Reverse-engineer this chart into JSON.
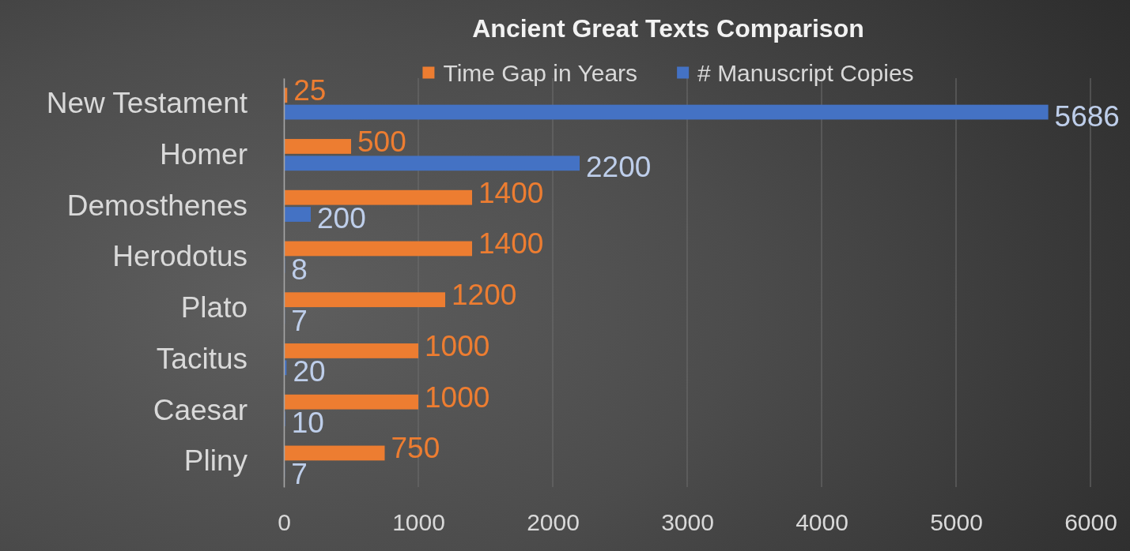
{
  "chart_data": {
    "type": "bar",
    "orientation": "horizontal",
    "title": "Ancient Great Texts Comparison",
    "categories": [
      "New Testament",
      "Homer",
      "Demosthenes",
      "Herodotus",
      "Plato",
      "Tacitus",
      "Caesar",
      "Pliny"
    ],
    "series": [
      {
        "name": "Time Gap in Years",
        "color": "#ed7d31",
        "values": [
          25,
          500,
          1400,
          1400,
          1200,
          1000,
          1000,
          750
        ]
      },
      {
        "name": "# Manuscript Copies",
        "color": "#4472c4",
        "values": [
          5686,
          2200,
          200,
          8,
          7,
          20,
          10,
          7
        ]
      }
    ],
    "xlim": [
      0,
      6000
    ],
    "xticks": [
      0,
      1000,
      2000,
      3000,
      4000,
      5000,
      6000
    ],
    "grid": "x",
    "legend": "top",
    "data_labels": true
  }
}
